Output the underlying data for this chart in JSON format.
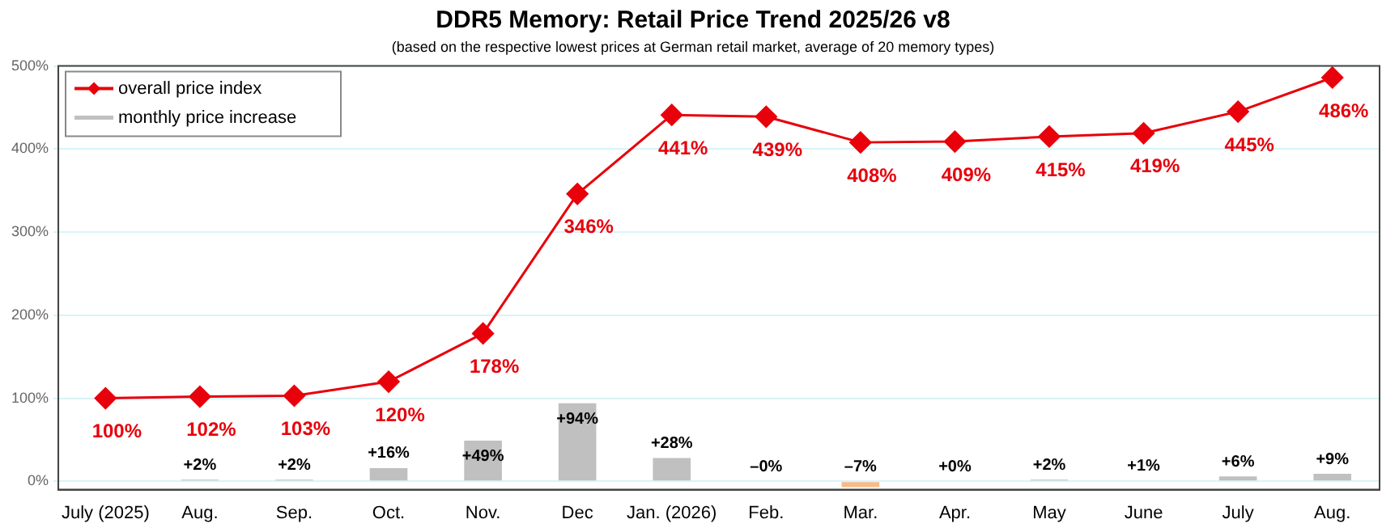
{
  "chart_data": {
    "type": "bar",
    "title": "DDR5 Memory: Retail Price Trend 2025/26 v8",
    "subtitle": "(based on the respective lowest prices at German retail market, average of 20 memory types)",
    "categories": [
      "July (2025)",
      "Aug.",
      "Sep.",
      "Oct.",
      "Nov.",
      "Dec",
      "Jan. (2026)",
      "Feb.",
      "Mar.",
      "Apr.",
      "May",
      "June",
      "July",
      "Aug."
    ],
    "series": [
      {
        "name": "overall price index",
        "type": "line",
        "color": "#e8000b",
        "marker": "diamond",
        "values": [
          100,
          102,
          103,
          120,
          178,
          346,
          441,
          439,
          408,
          409,
          415,
          419,
          445,
          486
        ],
        "value_labels": [
          "100%",
          "102%",
          "103%",
          "120%",
          "178%",
          "346%",
          "441%",
          "439%",
          "408%",
          "409%",
          "415%",
          "419%",
          "445%",
          "486%"
        ]
      },
      {
        "name": "monthly price increase",
        "color": "#c0c0c0",
        "colors": [
          "#c0c0c0",
          "#c0c0c0",
          "#c0c0c0",
          "#c0c0c0",
          "#c0c0c0",
          "#c0c0c0",
          "#c0c0c0",
          "#c0c0c0",
          "#f8b98a",
          "#c0c0c0",
          "#c0c0c0",
          "#c0c0c0",
          "#c0c0c0",
          "#c0c0c0"
        ],
        "values": [
          null,
          2,
          2,
          16,
          49,
          94,
          28,
          0,
          -7,
          0,
          2,
          1,
          6,
          9
        ],
        "value_labels": [
          null,
          "+2%",
          "+2%",
          "+16%",
          "+49%",
          "+94%",
          "+28%",
          "–0%",
          "–7%",
          "+0%",
          "+2%",
          "+1%",
          "+6%",
          "+9%"
        ]
      }
    ],
    "ylim": [
      -10,
      500
    ],
    "yticks": [
      {
        "value": 0,
        "label": "0%"
      },
      {
        "value": 100,
        "label": "100%"
      },
      {
        "value": 200,
        "label": "200%"
      },
      {
        "value": 300,
        "label": "300%"
      },
      {
        "value": 400,
        "label": "400%"
      },
      {
        "value": 500,
        "label": "500%"
      }
    ],
    "grid": "y",
    "legend": "top left"
  }
}
